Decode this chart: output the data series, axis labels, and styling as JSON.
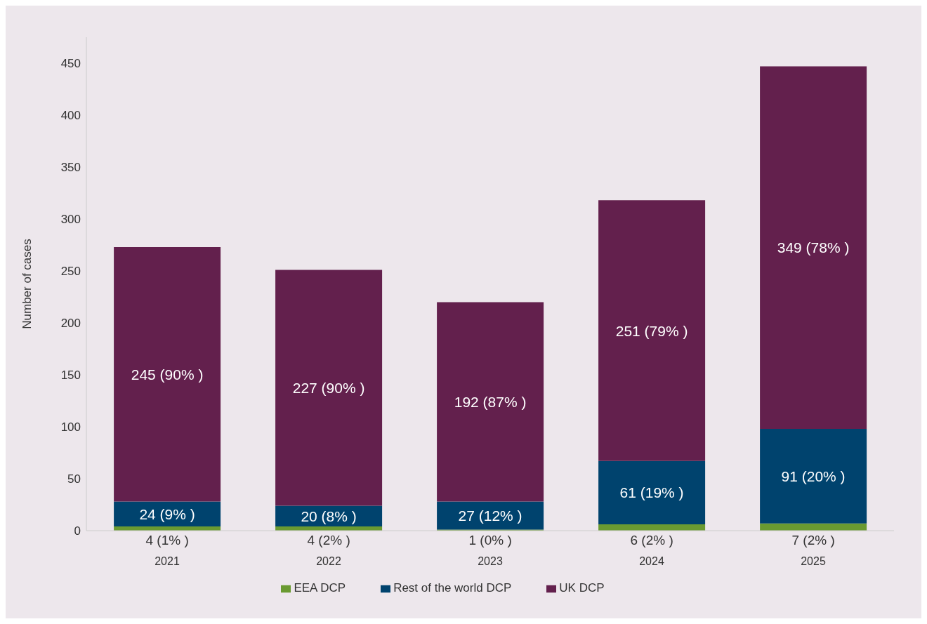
{
  "chart_data": {
    "type": "bar",
    "stacked": true,
    "ylabel": "Number of cases",
    "categories": [
      "2021",
      "2022",
      "2023",
      "2024",
      "2025"
    ],
    "series": [
      {
        "name": "EEA DCP",
        "color": "#6a9a31",
        "values": [
          4,
          4,
          1,
          6,
          7
        ],
        "value_labels": [
          "4 (1% )",
          "4 (2% )",
          "1 (0% )",
          "6 (2% )",
          "7 (2% )"
        ]
      },
      {
        "name": "Rest of the world DCP",
        "color": "#00436e",
        "values": [
          24,
          20,
          27,
          61,
          91
        ],
        "value_labels": [
          "24 (9% )",
          "20 (8% )",
          "27 (12% )",
          "61 (19% )",
          "91 (20% )"
        ]
      },
      {
        "name": "UK DCP",
        "color": "#63204d",
        "values": [
          245,
          227,
          192,
          251,
          349
        ],
        "value_labels": [
          "245 (90% )",
          "227 (90% )",
          "192 (87% )",
          "251 (79% )",
          "349 (78% )"
        ]
      }
    ],
    "ylim": [
      0,
      475
    ],
    "yticks": [
      0,
      50,
      100,
      150,
      200,
      250,
      300,
      350,
      400,
      450
    ],
    "grid": false,
    "legend": "bottom"
  }
}
